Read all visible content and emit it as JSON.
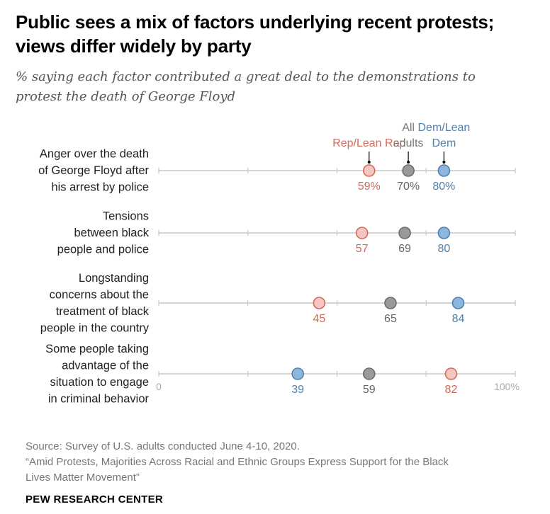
{
  "title": "Public sees a mix of factors underlying recent protests; views differ widely by party",
  "title_lines": [
    "Public sees a mix of factors underlying recent protests;",
    "views differ widely by party"
  ],
  "subtitle_lines": [
    "% saying each factor contributed a great deal to the demonstrations to",
    "protest the death of George Floyd"
  ],
  "source_lines": [
    "Source: Survey of U.S. adults conducted June 4-10, 2020.",
    "“Amid Protests, Majorities Across Racial and Ethnic Groups Express Support for the Black",
    "Lives Matter Movement”"
  ],
  "brand": "PEW RESEARCH CENTER",
  "chart_data": {
    "type": "scatter",
    "subtype": "dot-plot",
    "xlim": [
      0,
      100
    ],
    "axis_labels": [
      "0",
      "100%"
    ],
    "grid": false,
    "series": [
      {
        "name": "Rep/Lean Rep",
        "color": "#d4695a",
        "fill": "#f3c7bf",
        "values": [
          59,
          57,
          45,
          82
        ]
      },
      {
        "name": "All adults",
        "color": "#6b6b6b",
        "fill": "#9a9a9a",
        "values": [
          70,
          69,
          65,
          59
        ]
      },
      {
        "name": "Dem/Lean Dem",
        "color": "#4f7fad",
        "fill": "#8fb6dc",
        "values": [
          80,
          80,
          84,
          39
        ]
      }
    ],
    "legend_labels": [
      {
        "series": 0,
        "lines": [
          "Rep/Lean Rep"
        ]
      },
      {
        "series": 1,
        "lines": [
          "All",
          "adults"
        ]
      },
      {
        "series": 2,
        "lines": [
          "Dem/Lean",
          "Dem"
        ]
      }
    ],
    "categories": [
      {
        "lines": [
          "Anger over the death",
          "of George Floyd after",
          "his arrest by police"
        ],
        "labels": [
          "59%",
          "70%",
          "80%"
        ]
      },
      {
        "lines": [
          "Tensions",
          "between black",
          "people and police"
        ],
        "labels": [
          "57",
          "69",
          "80"
        ]
      },
      {
        "lines": [
          "Longstanding",
          "concerns about the",
          "treatment of black",
          "people in the country"
        ],
        "labels": [
          "45",
          "65",
          "84"
        ]
      },
      {
        "lines": [
          "Some people taking",
          "advantage of the",
          "situation to engage",
          "in criminal behavior"
        ],
        "labels": [
          "82",
          "59",
          "39"
        ],
        "label_series": [
          0,
          1,
          2
        ]
      }
    ]
  }
}
